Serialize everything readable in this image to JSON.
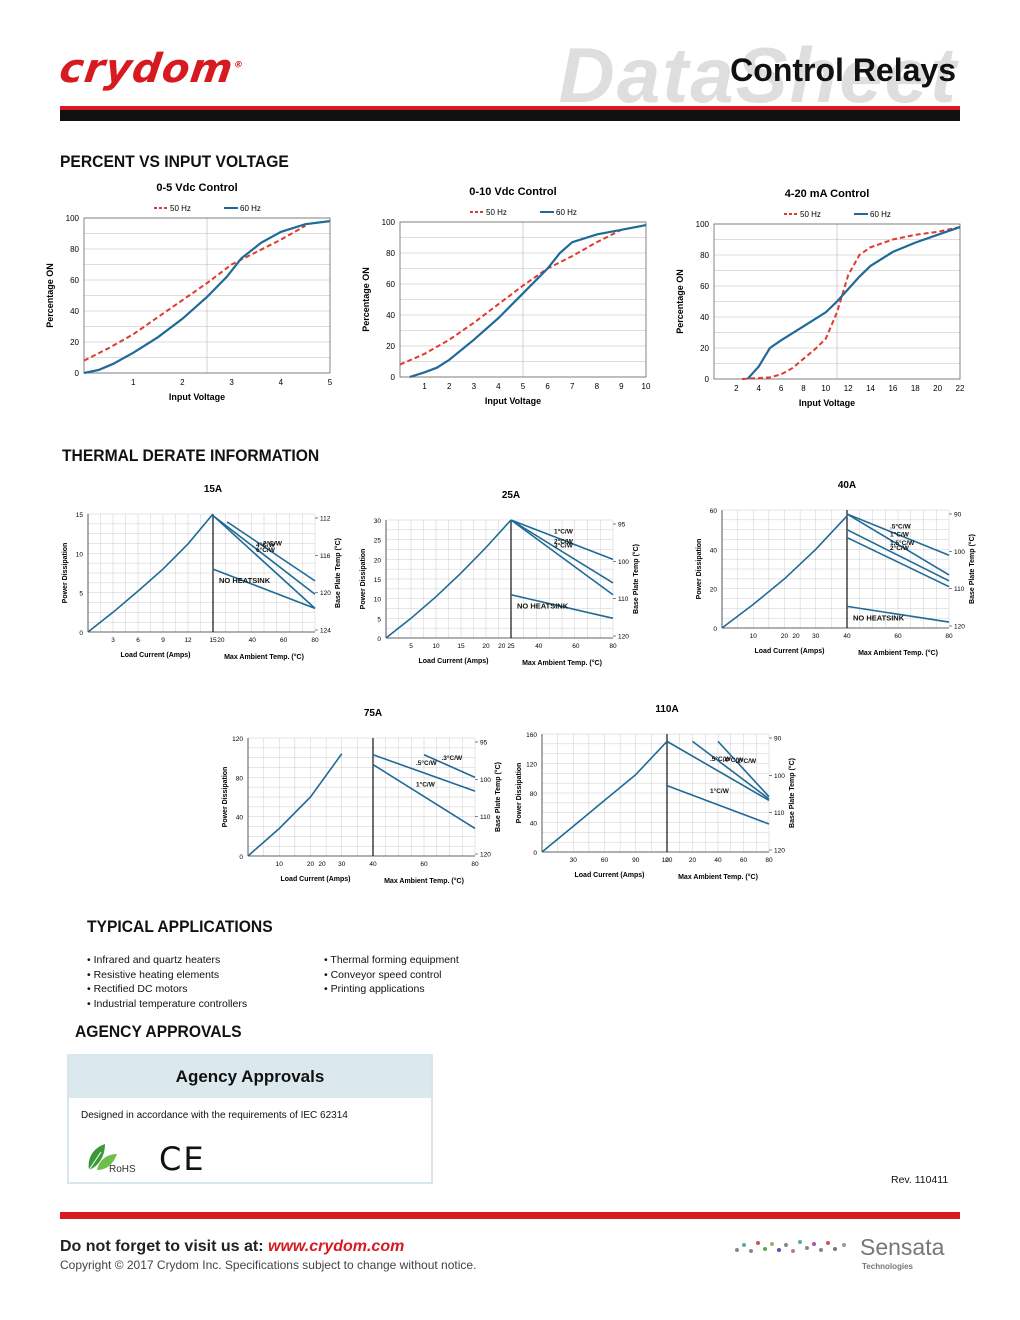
{
  "header": {
    "logo_text": "crydom",
    "logo_mark": "®",
    "watermark": "DataSheet",
    "title": "Control Relays",
    "brand_red": "#d71920"
  },
  "sections": {
    "percent": "PERCENT VS INPUT VOLTAGE",
    "thermal": "THERMAL DERATE INFORMATION",
    "applications": "TYPICAL APPLICATIONS",
    "agency": "AGENCY APPROVALS"
  },
  "chart_data": [
    {
      "type": "line",
      "title": "0-5 Vdc Control",
      "xlabel": "Input Voltage",
      "ylabel": "Percentage ON",
      "xlim": [
        0,
        5
      ],
      "ylim": [
        0,
        100
      ],
      "xticks": [
        1,
        2,
        3,
        4,
        5
      ],
      "yticks": [
        0,
        20,
        40,
        60,
        80,
        100
      ],
      "series": [
        {
          "name": "50 Hz",
          "color": "#e03a2f",
          "dashed": true,
          "x": [
            0,
            0.5,
            1,
            1.5,
            2,
            2.5,
            3,
            3.5,
            4,
            4.5
          ],
          "y": [
            8,
            16,
            25,
            36,
            47,
            58,
            70,
            78,
            86,
            95
          ]
        },
        {
          "name": "60 Hz",
          "color": "#1f6a96",
          "dashed": false,
          "x": [
            0,
            0.3,
            0.6,
            1,
            1.5,
            2,
            2.5,
            2.9,
            3.2,
            3.6,
            4,
            4.5,
            5
          ],
          "y": [
            0,
            2,
            6,
            13,
            23,
            35,
            49,
            62,
            74,
            84,
            91,
            96,
            98
          ]
        }
      ]
    },
    {
      "type": "line",
      "title": "0-10 Vdc Control",
      "xlabel": "Input Voltage",
      "ylabel": "Percentage ON",
      "xlim": [
        0,
        10
      ],
      "ylim": [
        0,
        100
      ],
      "xticks": [
        1,
        2,
        3,
        4,
        5,
        6,
        7,
        8,
        9,
        10
      ],
      "yticks": [
        0,
        20,
        40,
        60,
        80,
        100
      ],
      "series": [
        {
          "name": "50 Hz",
          "color": "#e03a2f",
          "dashed": true,
          "x": [
            0,
            1,
            2,
            3,
            4,
            5,
            6,
            7,
            8,
            9
          ],
          "y": [
            8,
            15,
            24,
            35,
            47,
            59,
            70,
            78,
            87,
            95
          ]
        },
        {
          "name": "60 Hz",
          "color": "#1f6a96",
          "dashed": false,
          "x": [
            0.4,
            1,
            1.5,
            2,
            3,
            4,
            5,
            6,
            6.5,
            7,
            8,
            9,
            10
          ],
          "y": [
            0,
            3,
            6,
            11,
            24,
            38,
            54,
            70,
            80,
            87,
            92,
            95,
            98
          ]
        }
      ]
    },
    {
      "type": "line",
      "title": "4-20 mA Control",
      "xlabel": "Input Voltage",
      "ylabel": "Percentage ON",
      "xlim": [
        0,
        22
      ],
      "ylim": [
        0,
        100
      ],
      "xticks": [
        2,
        4,
        6,
        8,
        10,
        12,
        14,
        16,
        18,
        20,
        22
      ],
      "yticks": [
        0,
        20,
        40,
        60,
        80,
        100
      ],
      "series": [
        {
          "name": "50 Hz",
          "color": "#e03a2f",
          "dashed": true,
          "x": [
            2.5,
            5,
            6,
            7,
            8,
            9,
            10,
            11,
            12,
            13,
            14,
            16,
            18,
            20,
            22
          ],
          "y": [
            0,
            1,
            3,
            7,
            13,
            19,
            26,
            43,
            67,
            80,
            85,
            90,
            93,
            95,
            98
          ]
        },
        {
          "name": "60 Hz",
          "color": "#1f6a96",
          "dashed": false,
          "x": [
            3,
            4,
            5,
            6,
            8,
            10,
            11,
            12,
            13,
            14,
            16,
            18,
            20,
            22
          ],
          "y": [
            0,
            8,
            20,
            25,
            34,
            43,
            50,
            58,
            66,
            73,
            82,
            88,
            93,
            98
          ]
        }
      ]
    },
    {
      "type": "line",
      "title": "15A",
      "xlabel": "Load Current (Amps)",
      "xlabel2": "Max Ambient Temp. (°C)",
      "ylabel": "Power Dissipation",
      "ylabel2": "Base Plate Temp (°C)",
      "ylim": [
        0,
        15
      ],
      "yticks": [
        0,
        5,
        10,
        15
      ],
      "xticks_left": [
        3,
        6,
        9,
        12,
        15
      ],
      "xticks_right": [
        20,
        40,
        60,
        80
      ],
      "right_ticks": [
        "112",
        "116",
        "120",
        "124"
      ],
      "left_range": [
        0,
        15
      ],
      "right_range": [
        15,
        80
      ],
      "curve": [
        [
          0,
          0
        ],
        [
          3,
          2.5
        ],
        [
          6,
          5.2
        ],
        [
          9,
          8
        ],
        [
          12,
          11.2
        ],
        [
          15,
          15
        ]
      ],
      "derate": [
        {
          "label": "2°C/W",
          "from": [
            24,
            14
          ],
          "to": [
            80,
            6.5
          ]
        },
        {
          "label": "4°C/W",
          "from": [
            15,
            14.8
          ],
          "to": [
            80,
            4.8
          ]
        },
        {
          "label": "6°C/W",
          "from": [
            15,
            14.8
          ],
          "to": [
            80,
            3.0
          ]
        },
        {
          "label": "NO HEATSINK",
          "from": [
            15,
            8
          ],
          "to": [
            80,
            3
          ]
        }
      ]
    },
    {
      "type": "line",
      "title": "25A",
      "xlabel": "Load Current (Amps)",
      "xlabel2": "Max Ambient Temp. (°C)",
      "ylabel": "Power Dissipation",
      "ylabel2": "Base Plate Temp (°C)",
      "ylim": [
        0,
        30
      ],
      "yticks": [
        0,
        5,
        10,
        15,
        20,
        25,
        30
      ],
      "xticks_left": [
        5,
        10,
        15,
        20,
        25
      ],
      "xticks_right": [
        20,
        40,
        60,
        80
      ],
      "right_ticks": [
        "95",
        "100",
        "110",
        "120"
      ],
      "curve": [
        [
          0,
          0
        ],
        [
          5,
          5
        ],
        [
          10,
          10.5
        ],
        [
          15,
          16.5
        ],
        [
          20,
          23
        ],
        [
          25,
          30
        ]
      ],
      "derate": [
        {
          "label": "1°C/W",
          "from": [
            25,
            30
          ],
          "to": [
            80,
            20
          ]
        },
        {
          "label": "2°C/W",
          "from": [
            25,
            30
          ],
          "to": [
            80,
            14
          ]
        },
        {
          "label": "3°C/W",
          "from": [
            25,
            30
          ],
          "to": [
            80,
            11
          ]
        },
        {
          "label": "NO HEATSINK",
          "from": [
            25,
            11
          ],
          "to": [
            80,
            5
          ]
        }
      ]
    },
    {
      "type": "line",
      "title": "40A",
      "xlabel": "Load Current (Amps)",
      "xlabel2": "Max Ambient Temp. (°C)",
      "ylabel": "Power Dissipation",
      "ylabel2": "Base Plate Temp (°C)",
      "ylim": [
        0,
        60
      ],
      "yticks": [
        0,
        20,
        40,
        60
      ],
      "xticks_left": [
        10,
        20,
        30,
        40
      ],
      "xticks_right": [
        20,
        40,
        60,
        80
      ],
      "right_ticks": [
        "90",
        "100",
        "110",
        "120"
      ],
      "curve": [
        [
          0,
          0
        ],
        [
          10,
          12
        ],
        [
          20,
          25
        ],
        [
          30,
          40
        ],
        [
          40,
          57
        ]
      ],
      "derate": [
        {
          "label": ".5°C/W",
          "from": [
            40,
            58
          ],
          "to": [
            80,
            37
          ]
        },
        {
          "label": "1°C/W",
          "from": [
            40,
            58
          ],
          "to": [
            80,
            27
          ]
        },
        {
          "label": "1.5°C/W",
          "from": [
            40,
            50
          ],
          "to": [
            80,
            24
          ]
        },
        {
          "label": "2°C/W",
          "from": [
            40,
            46
          ],
          "to": [
            80,
            21
          ]
        },
        {
          "label": "NO HEATSINK",
          "from": [
            40,
            11
          ],
          "to": [
            80,
            3
          ]
        }
      ]
    },
    {
      "type": "line",
      "title": "75A",
      "xlabel": "Load Current (Amps)",
      "xlabel2": "Max Ambient Temp. (°C)",
      "ylabel": "Power Dissipation",
      "ylabel2": "Base Plate Temp (°C)",
      "ylim": [
        0,
        120
      ],
      "yticks": [
        0,
        40,
        80,
        120
      ],
      "xticks_left": [
        10,
        20,
        30,
        40
      ],
      "xticks_right": [
        20,
        40,
        60,
        80
      ],
      "right_ticks": [
        "95",
        "100",
        "110",
        "120"
      ],
      "curve": [
        [
          0,
          0
        ],
        [
          10,
          28
        ],
        [
          20,
          60
        ],
        [
          30,
          104
        ]
      ],
      "derate": [
        {
          "label": ".3°C/W",
          "from": [
            60,
            103
          ],
          "to": [
            80,
            80
          ]
        },
        {
          "label": ".5°C/W",
          "from": [
            40,
            103
          ],
          "to": [
            80,
            66
          ]
        },
        {
          "label": "1°C/W",
          "from": [
            40,
            93
          ],
          "to": [
            80,
            28
          ]
        }
      ]
    },
    {
      "type": "line",
      "title": "110A",
      "xlabel": "Load Current (Amps)",
      "xlabel2": "Max Ambient Temp. (°C)",
      "ylabel": "Power Dissipation",
      "ylabel2": "Base Plate Temp (°C)",
      "ylim": [
        0,
        160
      ],
      "yticks": [
        0,
        40,
        80,
        120,
        160
      ],
      "xticks_left": [
        30,
        60,
        90,
        120
      ],
      "xticks_right": [
        0,
        20,
        40,
        60,
        80
      ],
      "right_ticks": [
        "90",
        "100",
        "110",
        "120"
      ],
      "curve": [
        [
          0,
          0
        ],
        [
          30,
          35
        ],
        [
          60,
          70
        ],
        [
          90,
          105
        ],
        [
          120,
          150
        ]
      ],
      "derate": [
        {
          "label": ".2°C/W",
          "from": [
            40,
            150
          ],
          "to": [
            80,
            75
          ]
        },
        {
          "label": ".4°C/W",
          "from": [
            20,
            150
          ],
          "to": [
            80,
            72
          ]
        },
        {
          "label": ".5°C/W",
          "from": [
            0,
            150
          ],
          "to": [
            80,
            70
          ]
        },
        {
          "label": "1°C/W",
          "from": [
            0,
            90
          ],
          "to": [
            80,
            38
          ]
        }
      ]
    }
  ],
  "applications": {
    "col1": [
      "• Infrared and quartz heaters",
      "• Resistive heating elements",
      "• Rectified DC motors",
      "• Industrial temperature controllers"
    ],
    "col2": [
      "• Thermal forming equipment",
      "• Conveyor speed control",
      "• Printing applications"
    ]
  },
  "agency": {
    "table_title": "Agency Approvals",
    "description": "Designed in accordance with the requirements of IEC 62314",
    "rohs": "RoHS",
    "ce": "CE"
  },
  "footer": {
    "revision": "Rev. 110411",
    "visit_label": "Do not forget to visit us at: ",
    "visit_url": "www.crydom.com",
    "copyright": "Copyright © 2017 Crydom Inc. Specifications subject to change without notice.",
    "sensata": "Sensata",
    "sensata_sub": "Technologies"
  }
}
